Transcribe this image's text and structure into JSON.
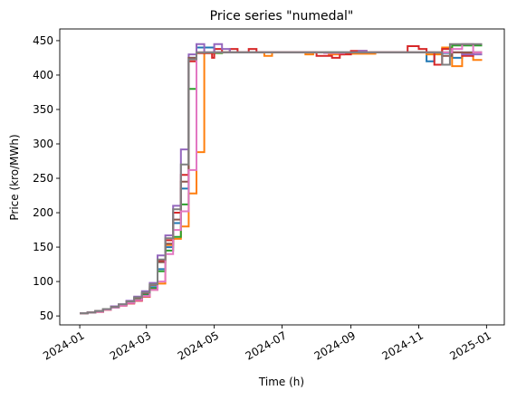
{
  "chart_data": {
    "type": "line",
    "step": true,
    "title": "Price series \"numedal\"",
    "xlabel": "Time (h)",
    "ylabel": "Price (kro/MWh)",
    "xlim": [
      "2023-12-14",
      "2025-01-17"
    ],
    "ylim": [
      37,
      467
    ],
    "x_ticks": [
      "2024-01",
      "2024-03",
      "2024-05",
      "2024-07",
      "2024-09",
      "2024-11",
      "2025-01"
    ],
    "y_ticks": [
      50,
      100,
      150,
      200,
      250,
      300,
      350,
      400,
      450
    ],
    "grid": false,
    "series": [
      {
        "color": "#1f77b4",
        "points": [
          [
            "2024-01-01",
            54
          ],
          [
            "2024-01-08",
            55
          ],
          [
            "2024-01-15",
            57
          ],
          [
            "2024-01-22",
            60
          ],
          [
            "2024-01-29",
            63
          ],
          [
            "2024-02-05",
            66
          ],
          [
            "2024-02-12",
            70
          ],
          [
            "2024-02-19",
            75
          ],
          [
            "2024-02-26",
            82
          ],
          [
            "2024-03-04",
            92
          ],
          [
            "2024-03-11",
            118
          ],
          [
            "2024-03-18",
            150
          ],
          [
            "2024-03-25",
            185
          ],
          [
            "2024-04-01",
            235
          ],
          [
            "2024-04-08",
            425
          ],
          [
            "2024-04-15",
            440
          ],
          [
            "2024-05-01",
            433
          ],
          [
            "2024-05-08",
            433
          ],
          [
            "2024-06-15",
            433
          ],
          [
            "2024-08-01",
            433
          ],
          [
            "2024-09-15",
            433
          ],
          [
            "2024-11-01",
            433
          ],
          [
            "2024-11-08",
            420
          ],
          [
            "2024-11-15",
            432
          ],
          [
            "2024-12-01",
            425
          ],
          [
            "2024-12-10",
            433
          ],
          [
            "2024-12-28",
            433
          ]
        ]
      },
      {
        "color": "#ff7f0e",
        "points": [
          [
            "2024-01-01",
            54
          ],
          [
            "2024-01-08",
            55
          ],
          [
            "2024-01-15",
            56
          ],
          [
            "2024-01-22",
            59
          ],
          [
            "2024-01-29",
            62
          ],
          [
            "2024-02-05",
            65
          ],
          [
            "2024-02-12",
            69
          ],
          [
            "2024-02-19",
            73
          ],
          [
            "2024-02-26",
            78
          ],
          [
            "2024-03-04",
            90
          ],
          [
            "2024-03-11",
            97
          ],
          [
            "2024-03-18",
            153
          ],
          [
            "2024-03-25",
            162
          ],
          [
            "2024-04-01",
            180
          ],
          [
            "2024-04-08",
            228
          ],
          [
            "2024-04-15",
            288
          ],
          [
            "2024-04-22",
            432
          ],
          [
            "2024-05-08",
            433
          ],
          [
            "2024-06-08",
            433
          ],
          [
            "2024-06-15",
            428
          ],
          [
            "2024-06-22",
            433
          ],
          [
            "2024-07-22",
            430
          ],
          [
            "2024-07-29",
            433
          ],
          [
            "2024-08-12",
            430
          ],
          [
            "2024-08-26",
            431
          ],
          [
            "2024-09-23",
            433
          ],
          [
            "2024-11-08",
            430
          ],
          [
            "2024-11-22",
            440
          ],
          [
            "2024-12-01",
            413
          ],
          [
            "2024-12-10",
            432
          ],
          [
            "2024-12-20",
            422
          ],
          [
            "2024-12-28",
            422
          ]
        ]
      },
      {
        "color": "#2ca02c",
        "points": [
          [
            "2024-01-01",
            54
          ],
          [
            "2024-01-08",
            55
          ],
          [
            "2024-01-15",
            57
          ],
          [
            "2024-01-22",
            60
          ],
          [
            "2024-01-29",
            63
          ],
          [
            "2024-02-05",
            66
          ],
          [
            "2024-02-12",
            70
          ],
          [
            "2024-02-19",
            74
          ],
          [
            "2024-02-26",
            80
          ],
          [
            "2024-03-04",
            90
          ],
          [
            "2024-03-11",
            115
          ],
          [
            "2024-03-18",
            145
          ],
          [
            "2024-03-25",
            165
          ],
          [
            "2024-04-01",
            212
          ],
          [
            "2024-04-08",
            380
          ],
          [
            "2024-04-15",
            432
          ],
          [
            "2024-05-08",
            433
          ],
          [
            "2024-06-15",
            433
          ],
          [
            "2024-08-01",
            433
          ],
          [
            "2024-10-01",
            433
          ],
          [
            "2024-11-08",
            433
          ],
          [
            "2024-12-01",
            443
          ],
          [
            "2024-12-28",
            443
          ]
        ]
      },
      {
        "color": "#d62728",
        "points": [
          [
            "2024-01-01",
            54
          ],
          [
            "2024-01-08",
            55
          ],
          [
            "2024-01-15",
            56
          ],
          [
            "2024-01-22",
            59
          ],
          [
            "2024-01-29",
            62
          ],
          [
            "2024-02-05",
            65
          ],
          [
            "2024-02-12",
            68
          ],
          [
            "2024-02-19",
            72
          ],
          [
            "2024-02-26",
            78
          ],
          [
            "2024-03-04",
            88
          ],
          [
            "2024-03-11",
            130
          ],
          [
            "2024-03-18",
            160
          ],
          [
            "2024-03-25",
            200
          ],
          [
            "2024-04-01",
            255
          ],
          [
            "2024-04-08",
            420
          ],
          [
            "2024-04-15",
            432
          ],
          [
            "2024-04-29",
            425
          ],
          [
            "2024-05-01",
            438
          ],
          [
            "2024-05-08",
            433
          ],
          [
            "2024-05-15",
            438
          ],
          [
            "2024-05-22",
            433
          ],
          [
            "2024-06-01",
            438
          ],
          [
            "2024-06-08",
            433
          ],
          [
            "2024-08-01",
            428
          ],
          [
            "2024-08-15",
            425
          ],
          [
            "2024-08-22",
            430
          ],
          [
            "2024-09-01",
            435
          ],
          [
            "2024-09-15",
            433
          ],
          [
            "2024-10-22",
            442
          ],
          [
            "2024-11-01",
            438
          ],
          [
            "2024-11-08",
            433
          ],
          [
            "2024-11-15",
            415
          ],
          [
            "2024-11-22",
            438
          ],
          [
            "2024-12-01",
            433
          ],
          [
            "2024-12-10",
            428
          ],
          [
            "2024-12-20",
            433
          ],
          [
            "2024-12-28",
            433
          ]
        ]
      },
      {
        "color": "#9467bd",
        "points": [
          [
            "2024-01-01",
            54
          ],
          [
            "2024-01-08",
            55
          ],
          [
            "2024-01-15",
            57
          ],
          [
            "2024-01-22",
            60
          ],
          [
            "2024-01-29",
            64
          ],
          [
            "2024-02-05",
            67
          ],
          [
            "2024-02-12",
            72
          ],
          [
            "2024-02-19",
            78
          ],
          [
            "2024-02-26",
            86
          ],
          [
            "2024-03-04",
            98
          ],
          [
            "2024-03-11",
            138
          ],
          [
            "2024-03-18",
            167
          ],
          [
            "2024-03-25",
            210
          ],
          [
            "2024-04-01",
            292
          ],
          [
            "2024-04-08",
            430
          ],
          [
            "2024-04-15",
            445
          ],
          [
            "2024-04-22",
            433
          ],
          [
            "2024-05-01",
            445
          ],
          [
            "2024-05-08",
            438
          ],
          [
            "2024-05-15",
            433
          ],
          [
            "2024-06-15",
            433
          ],
          [
            "2024-08-15",
            433
          ],
          [
            "2024-09-08",
            435
          ],
          [
            "2024-09-15",
            433
          ],
          [
            "2024-11-15",
            433
          ],
          [
            "2024-12-01",
            433
          ],
          [
            "2024-12-10",
            430
          ],
          [
            "2024-12-28",
            430
          ]
        ]
      },
      {
        "color": "#8c564b",
        "points": [
          [
            "2024-01-01",
            54
          ],
          [
            "2024-01-08",
            55
          ],
          [
            "2024-01-15",
            57
          ],
          [
            "2024-01-22",
            60
          ],
          [
            "2024-01-29",
            63
          ],
          [
            "2024-02-05",
            66
          ],
          [
            "2024-02-12",
            71
          ],
          [
            "2024-02-19",
            76
          ],
          [
            "2024-02-26",
            83
          ],
          [
            "2024-03-04",
            95
          ],
          [
            "2024-03-11",
            128
          ],
          [
            "2024-03-18",
            155
          ],
          [
            "2024-03-25",
            190
          ],
          [
            "2024-04-01",
            245
          ],
          [
            "2024-04-08",
            425
          ],
          [
            "2024-04-15",
            433
          ],
          [
            "2024-06-15",
            433
          ],
          [
            "2024-09-15",
            433
          ],
          [
            "2024-11-08",
            433
          ],
          [
            "2024-11-22",
            428
          ],
          [
            "2024-12-01",
            433
          ],
          [
            "2024-12-28",
            433
          ]
        ]
      },
      {
        "color": "#e377c2",
        "points": [
          [
            "2024-01-01",
            54
          ],
          [
            "2024-01-08",
            55
          ],
          [
            "2024-01-15",
            56
          ],
          [
            "2024-01-22",
            59
          ],
          [
            "2024-01-29",
            62
          ],
          [
            "2024-02-05",
            65
          ],
          [
            "2024-02-12",
            69
          ],
          [
            "2024-02-19",
            73
          ],
          [
            "2024-02-26",
            79
          ],
          [
            "2024-03-04",
            88
          ],
          [
            "2024-03-11",
            100
          ],
          [
            "2024-03-18",
            140
          ],
          [
            "2024-03-25",
            175
          ],
          [
            "2024-04-01",
            202
          ],
          [
            "2024-04-08",
            262
          ],
          [
            "2024-04-15",
            433
          ],
          [
            "2024-06-15",
            433
          ],
          [
            "2024-08-08",
            432
          ],
          [
            "2024-08-26",
            433
          ],
          [
            "2024-11-15",
            433
          ],
          [
            "2024-12-01",
            438
          ],
          [
            "2024-12-10",
            445
          ],
          [
            "2024-12-20",
            433
          ],
          [
            "2024-12-28",
            433
          ]
        ]
      },
      {
        "color": "#7f7f7f",
        "points": [
          [
            "2024-01-01",
            54
          ],
          [
            "2024-01-08",
            55
          ],
          [
            "2024-01-15",
            57
          ],
          [
            "2024-01-22",
            60
          ],
          [
            "2024-01-29",
            63
          ],
          [
            "2024-02-05",
            67
          ],
          [
            "2024-02-12",
            71
          ],
          [
            "2024-02-19",
            77
          ],
          [
            "2024-02-26",
            84
          ],
          [
            "2024-03-04",
            96
          ],
          [
            "2024-03-11",
            132
          ],
          [
            "2024-03-18",
            163
          ],
          [
            "2024-03-25",
            205
          ],
          [
            "2024-04-01",
            270
          ],
          [
            "2024-04-08",
            423
          ],
          [
            "2024-04-15",
            433
          ],
          [
            "2024-06-15",
            433
          ],
          [
            "2024-09-15",
            433
          ],
          [
            "2024-11-15",
            433
          ],
          [
            "2024-11-22",
            415
          ],
          [
            "2024-11-29",
            445
          ],
          [
            "2024-12-20",
            445
          ],
          [
            "2024-12-28",
            445
          ]
        ]
      }
    ]
  }
}
